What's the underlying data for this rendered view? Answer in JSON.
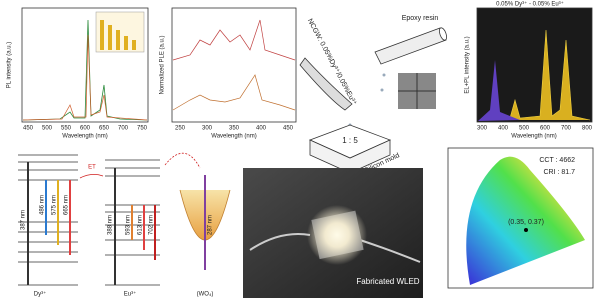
{
  "panels": {
    "pl": {
      "y_label": "PL intensity (a.u.)",
      "x_label": "Wavelength (nm)",
      "x_ticks": [
        450,
        500,
        550,
        600,
        650,
        700,
        750
      ]
    },
    "ple": {
      "y_label": "Normalized PLE (a.u.)",
      "x_label": "Wavelength (nm)",
      "x_ticks": [
        250,
        300,
        350,
        400,
        450
      ]
    },
    "fabrication": {
      "phosphor": "NCGW: 0.05%Dy³⁺/0.05%Eu³⁺",
      "resin": "Epoxy resin",
      "ratio": "1 : 5",
      "mold": "Silicon mold"
    },
    "el": {
      "title": "0.05% Dy³⁺ - 0.05% Eu³⁺",
      "y_label": "EL+PL intensity (a.u.)",
      "x_label": "Wavelength (nm)",
      "x_ticks": [
        300,
        400,
        500,
        600,
        700,
        800
      ]
    },
    "energy": {
      "dy": "Dy³⁺",
      "eu": "Eu³⁺",
      "host": "(WO₄)",
      "transfer": "ET",
      "dy_lines": [
        "486 nm",
        "575 nm",
        "665 nm"
      ],
      "eu_lines": [
        "593 nm",
        "613 nm",
        "702 nm"
      ],
      "dy_excitation": "387 nm",
      "eu_excitation": "388 nm",
      "host_excitation": "287 nm"
    },
    "photo": {
      "caption": "Fabricated WLED"
    },
    "cie": {
      "cct": "CCT : 4662",
      "cri": "CRI : 81.7",
      "point": "(0.35, 0.37)"
    }
  }
}
